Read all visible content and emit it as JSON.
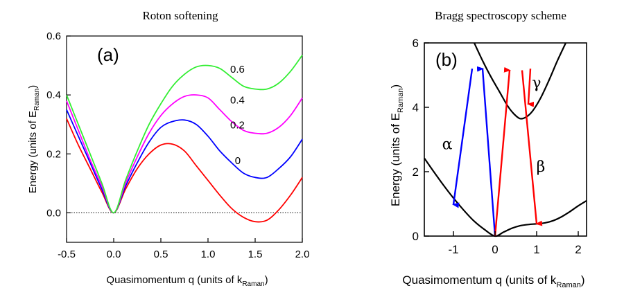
{
  "chart_data": [
    {
      "type": "line",
      "title": "Roton softening",
      "panel_label": "(a)",
      "xlabel": "Quasimomentum q (units of k",
      "xlabel_sub": "Raman",
      "xlabel_end": ")",
      "ylabel": "Energy (units of E",
      "ylabel_sub": "Raman",
      "ylabel_end": ")",
      "xlim": [
        -0.5,
        2.0
      ],
      "ylim": [
        -0.1,
        0.6
      ],
      "xticks": [
        "-0.5",
        "0.0",
        "0.5",
        "1.0",
        "1.5",
        "2.0"
      ],
      "yticks": [
        "0.0",
        "0.2",
        "0.4",
        "0.6"
      ],
      "zero_line": "dotted",
      "series": [
        {
          "name": "0",
          "color": "#ff0000",
          "x": [
            -0.5,
            -0.375,
            -0.25,
            -0.125,
            0.0,
            0.125,
            0.25,
            0.375,
            0.5,
            0.625,
            0.75,
            0.875,
            1.0,
            1.125,
            1.25,
            1.375,
            1.5,
            1.625,
            1.75,
            1.875,
            2.0
          ],
          "y": [
            0.32,
            0.23,
            0.15,
            0.07,
            0.0,
            0.08,
            0.15,
            0.2,
            0.23,
            0.233,
            0.21,
            0.16,
            0.11,
            0.06,
            0.015,
            -0.015,
            -0.03,
            -0.025,
            0.01,
            0.06,
            0.12
          ]
        },
        {
          "name": "0.2",
          "color": "#0000ff",
          "x": [
            -0.5,
            -0.375,
            -0.25,
            -0.125,
            0.0,
            0.125,
            0.25,
            0.375,
            0.5,
            0.625,
            0.75,
            0.875,
            1.0,
            1.125,
            1.25,
            1.375,
            1.5,
            1.625,
            1.75,
            1.875,
            2.0
          ],
          "y": [
            0.35,
            0.26,
            0.17,
            0.08,
            0.0,
            0.09,
            0.17,
            0.24,
            0.29,
            0.31,
            0.315,
            0.3,
            0.26,
            0.21,
            0.17,
            0.135,
            0.12,
            0.12,
            0.15,
            0.19,
            0.25
          ]
        },
        {
          "name": "0.4",
          "color": "#ff00ff",
          "x": [
            -0.5,
            -0.375,
            -0.25,
            -0.125,
            0.0,
            0.125,
            0.25,
            0.375,
            0.5,
            0.625,
            0.75,
            0.875,
            1.0,
            1.125,
            1.25,
            1.375,
            1.5,
            1.625,
            1.75,
            1.875,
            2.0
          ],
          "y": [
            0.38,
            0.28,
            0.18,
            0.09,
            0.0,
            0.1,
            0.19,
            0.27,
            0.33,
            0.37,
            0.395,
            0.4,
            0.39,
            0.35,
            0.31,
            0.28,
            0.27,
            0.27,
            0.29,
            0.33,
            0.39
          ]
        },
        {
          "name": "0.6",
          "color": "#33ee33",
          "x": [
            -0.5,
            -0.375,
            -0.25,
            -0.125,
            0.0,
            0.125,
            0.25,
            0.375,
            0.5,
            0.625,
            0.75,
            0.875,
            1.0,
            1.125,
            1.25,
            1.375,
            1.5,
            1.625,
            1.75,
            1.875,
            2.0
          ],
          "y": [
            0.4,
            0.3,
            0.2,
            0.1,
            0.0,
            0.11,
            0.21,
            0.3,
            0.37,
            0.43,
            0.47,
            0.495,
            0.5,
            0.49,
            0.46,
            0.43,
            0.42,
            0.42,
            0.44,
            0.48,
            0.535
          ]
        }
      ]
    },
    {
      "type": "line",
      "title": "Bragg spectroscopy scheme",
      "panel_label": "(b)",
      "xlabel": "Quasimomentum q (units of k",
      "xlabel_sub": "Raman",
      "xlabel_end": ")",
      "ylabel": "Energy (units of E",
      "ylabel_sub": "Raman",
      "ylabel_end": ")",
      "xlim": [
        -1.7,
        2.2
      ],
      "ylim": [
        0,
        6
      ],
      "xticks": [
        "-1",
        "0",
        "1",
        "2"
      ],
      "xtick_values": [
        -1,
        0,
        1,
        2
      ],
      "yticks": [
        "0",
        "2",
        "4",
        "6"
      ],
      "ytick_values": [
        0,
        2,
        4,
        6
      ],
      "series": [
        {
          "color": "#000000",
          "x": [
            -1.7,
            -1.5,
            -1.25,
            -1.0,
            -0.75,
            -0.5,
            -0.25,
            0.0,
            0.2,
            0.4,
            0.6,
            0.8,
            1.0,
            1.2,
            1.4,
            1.6,
            1.8,
            2.0,
            2.2
          ],
          "y": [
            2.42,
            2.05,
            1.6,
            1.18,
            0.8,
            0.46,
            0.2,
            0.0,
            0.12,
            0.24,
            0.32,
            0.36,
            0.38,
            0.41,
            0.48,
            0.6,
            0.76,
            0.94,
            1.1
          ]
        },
        {
          "color": "#000000",
          "x": [
            -0.5,
            -0.3,
            -0.1,
            0.1,
            0.3,
            0.45,
            0.6,
            0.75,
            0.9,
            1.1,
            1.3,
            1.5,
            1.7
          ],
          "y": [
            6.0,
            5.45,
            4.95,
            4.5,
            4.05,
            3.8,
            3.65,
            3.7,
            3.88,
            4.3,
            4.85,
            5.45,
            6.0
          ]
        }
      ],
      "arrows": [
        {
          "label": "α",
          "color": "#0000ff",
          "start": [
            -0.55,
            5.2
          ],
          "end": [
            -1.0,
            0.98
          ],
          "return_end": [
            0.0,
            0.0
          ],
          "return_start": [
            -0.3,
            5.2
          ]
        },
        {
          "label": "β",
          "color": "#ff0000",
          "start": [
            0.65,
            5.15
          ],
          "end": [
            1.0,
            0.38
          ],
          "return_end": [
            0.0,
            0.0
          ],
          "return_start": [
            0.35,
            5.15
          ]
        },
        {
          "label": "γ",
          "color": "#ff0000",
          "start": [
            0.85,
            5.2
          ],
          "end": [
            0.8,
            4.1
          ]
        }
      ]
    }
  ]
}
